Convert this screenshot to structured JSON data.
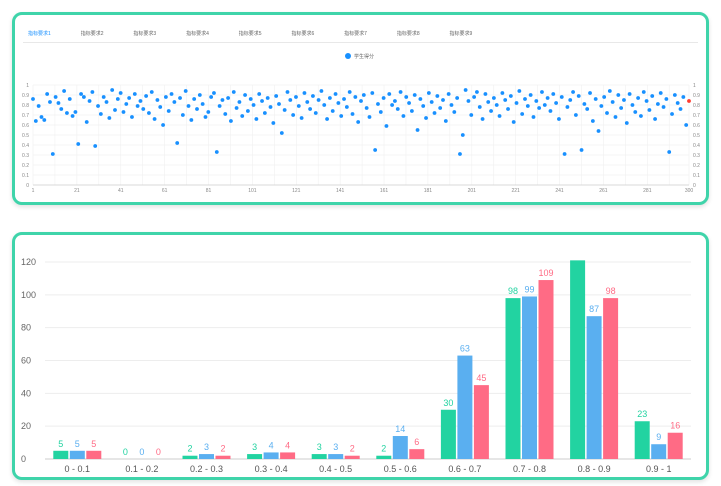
{
  "tabs": [
    {
      "label": "指标要求1",
      "active": true
    },
    {
      "label": "指标要求2",
      "active": false
    },
    {
      "label": "指标要求3",
      "active": false
    },
    {
      "label": "指标要求4",
      "active": false
    },
    {
      "label": "指标要求5",
      "active": false
    },
    {
      "label": "指标要求6",
      "active": false
    },
    {
      "label": "指标要求7",
      "active": false
    },
    {
      "label": "指标要求8",
      "active": false
    },
    {
      "label": "指标要求9",
      "active": false
    }
  ],
  "scatter_legend": "学生得分",
  "colors": {
    "scatter": "#1890ff",
    "highlight": "#ff3b30",
    "bar1": "#22d3a1",
    "bar2": "#5aaff0",
    "bar3": "#ff6b85",
    "border": "#3fd4aa"
  },
  "chart_data": [
    {
      "type": "scatter",
      "ylim": [
        0,
        1
      ],
      "yticks": [
        "0",
        "0.1",
        "0.2",
        "0.3",
        "0.4",
        "0.5",
        "0.6",
        "0.7",
        "0.8",
        "0.9",
        "1"
      ],
      "xticks": [
        "1",
        "11",
        "21",
        "31",
        "41",
        "51",
        "61",
        "71",
        "81",
        "91",
        "101",
        "111",
        "121",
        "131",
        "141",
        "151",
        "161",
        "171",
        "181",
        "191",
        "201",
        "211",
        "221",
        "231",
        "241",
        "251",
        "261",
        "271",
        "281",
        "291",
        "300"
      ],
      "xlim": [
        1,
        300
      ],
      "series": [
        {
          "name": "学生得分",
          "y": [
            0.86,
            0.64,
            0.79,
            0.68,
            0.65,
            0.91,
            0.83,
            0.31,
            0.88,
            0.82,
            0.76,
            0.94,
            0.72,
            0.86,
            0.69,
            0.73,
            0.41,
            0.91,
            0.88,
            0.63,
            0.84,
            0.93,
            0.39,
            0.79,
            0.71,
            0.88,
            0.83,
            0.67,
            0.95,
            0.75,
            0.86,
            0.92,
            0.73,
            0.81,
            0.87,
            0.68,
            0.91,
            0.79,
            0.84,
            0.76,
            0.89,
            0.72,
            0.93,
            0.66,
            0.85,
            0.78,
            0.6,
            0.88,
            0.74,
            0.91,
            0.83,
            0.42,
            0.87,
            0.7,
            0.94,
            0.79,
            0.65,
            0.86,
            0.76,
            0.9,
            0.81,
            0.68,
            0.73,
            0.88,
            0.92,
            0.33,
            0.79,
            0.85,
            0.71,
            0.87,
            0.64,
            0.93,
            0.77,
            0.83,
            0.69,
            0.9,
            0.74,
            0.86,
            0.8,
            0.66,
            0.91,
            0.84,
            0.72,
            0.87,
            0.78,
            0.62,
            0.89,
            0.81,
            0.52,
            0.75,
            0.93,
            0.85,
            0.7,
            0.88,
            0.79,
            0.67,
            0.92,
            0.83,
            0.76,
            0.89,
            0.72,
            0.85,
            0.94,
            0.8,
            0.66,
            0.87,
            0.74,
            0.91,
            0.82,
            0.69,
            0.86,
            0.78,
            0.93,
            0.71,
            0.88,
            0.63,
            0.84,
            0.9,
            0.77,
            0.68,
            0.92,
            0.35,
            0.81,
            0.73,
            0.87,
            0.59,
            0.91,
            0.8,
            0.84,
            0.76,
            0.93,
            0.69,
            0.88,
            0.82,
            0.74,
            0.9,
            0.55,
            0.86,
            0.79,
            0.67,
            0.92,
            0.83,
            0.72,
            0.89,
            0.77,
            0.85,
            0.64,
            0.91,
            0.8,
            0.73,
            0.87,
            0.31,
            0.5,
            0.95,
            0.84,
            0.7,
            0.88,
            0.93,
            0.78,
            0.66,
            0.91,
            0.83,
            0.74,
            0.87,
            0.8,
            0.69,
            0.92,
            0.85,
            0.76,
            0.89,
            0.63,
            0.82,
            0.94,
            0.71,
            0.86,
            0.79,
            0.9,
            0.68,
            0.84,
            0.77,
            0.93,
            0.8,
            0.87,
            0.74,
            0.91,
            0.82,
            0.66,
            0.88,
            0.31,
            0.78,
            0.85,
            0.93,
            0.7,
            0.89,
            0.35,
            0.81,
            0.76,
            0.92,
            0.64,
            0.86,
            0.54,
            0.79,
            0.88,
            0.72,
            0.94,
            0.83,
            0.68,
            0.9,
            0.77,
            0.85,
            0.62,
            0.91,
            0.8,
            0.73,
            0.87,
            0.69,
            0.93,
            0.84,
            0.75,
            0.89,
            0.66,
            0.81,
            0.92,
            0.78,
            0.86,
            0.33,
            0.71,
            0.9,
            0.82,
            0.76,
            0.88,
            0.6,
            0.84
          ]
        }
      ]
    },
    {
      "type": "bar",
      "categories": [
        "0 - 0.1",
        "0.1 - 0.2",
        "0.2 - 0.3",
        "0.3 - 0.4",
        "0.4 - 0.5",
        "0.5 - 0.6",
        "0.6 - 0.7",
        "0.7 - 0.8",
        "0.8 - 0.9",
        "0.9 - 1"
      ],
      "ylim": [
        0,
        120
      ],
      "yticks": [
        "0",
        "20",
        "40",
        "60",
        "80",
        "100",
        "120"
      ],
      "series": [
        {
          "values": [
            5,
            0,
            2,
            3,
            3,
            2,
            30,
            98,
            121,
            23
          ],
          "labels": [
            "5",
            "0",
            "2",
            "3",
            "3",
            "2",
            "30",
            "98",
            "",
            "23"
          ]
        },
        {
          "values": [
            5,
            0,
            3,
            4,
            3,
            14,
            63,
            99,
            87,
            9
          ],
          "labels": [
            "5",
            "0",
            "3",
            "4",
            "3",
            "14",
            "63",
            "99",
            "87",
            "9"
          ]
        },
        {
          "values": [
            5,
            0,
            2,
            4,
            2,
            6,
            45,
            109,
            98,
            16
          ],
          "labels": [
            "5",
            "0",
            "2",
            "4",
            "2",
            "6",
            "45",
            "109",
            "98",
            "16"
          ]
        }
      ]
    }
  ]
}
